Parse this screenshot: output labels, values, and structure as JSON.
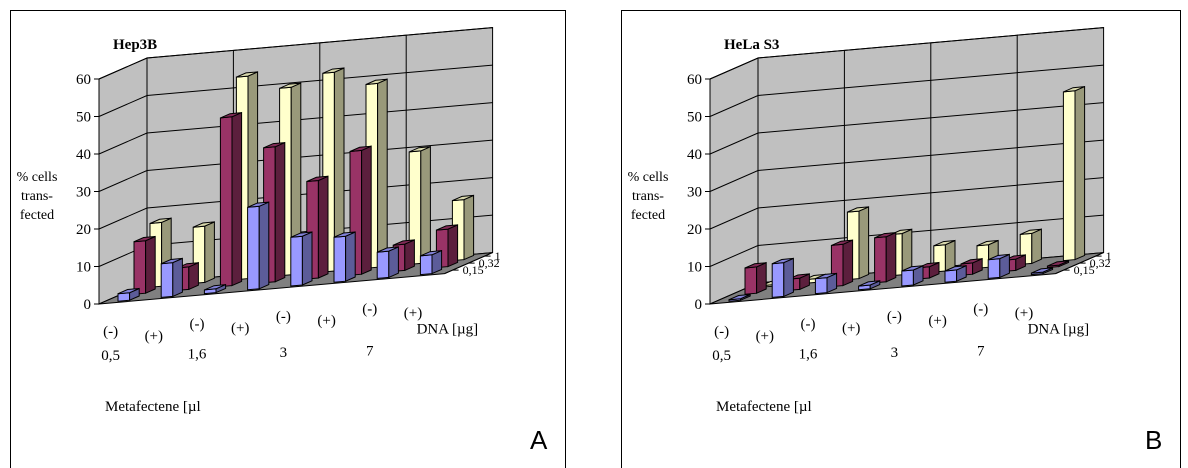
{
  "chart_data": [
    {
      "type": "bar",
      "panel_label": "A",
      "title": "Hep3B",
      "ylabel": [
        "% cells",
        "trans-",
        "fected"
      ],
      "xlabel": "Metafectene [µl",
      "zlabel": "DNA [µg]",
      "ylim": [
        0,
        60
      ],
      "yticks": [
        "0",
        "10",
        "20",
        "30",
        "40",
        "50",
        "60"
      ],
      "categories": [
        "(-)",
        "(+)",
        "(-)",
        "(+)",
        "(-)",
        "(+)",
        "(-)",
        "(+)"
      ],
      "group_labels": [
        "0,5",
        "1,6",
        "3",
        "7"
      ],
      "series": [
        {
          "name": "0,15",
          "values": [
            2,
            9,
            1,
            22,
            13,
            12,
            7,
            5
          ]
        },
        {
          "name": "0,32",
          "values": [
            14,
            6,
            45,
            36,
            26,
            33,
            7,
            10
          ]
        },
        {
          "name": "1",
          "values": [
            17,
            15,
            54,
            50,
            53,
            49,
            30,
            16
          ]
        }
      ],
      "colors": {
        "0,15": "#9999ff",
        "0,32": "#993366",
        "1": "#ffffcc"
      },
      "grid": true
    },
    {
      "type": "bar",
      "panel_label": "B",
      "title": "HeLa S3",
      "ylabel": [
        "% cells",
        "trans-",
        "fected"
      ],
      "xlabel": "Metafectene [µl",
      "zlabel": "DNA [µg]",
      "ylim": [
        0,
        60
      ],
      "yticks": [
        "0",
        "10",
        "20",
        "30",
        "40",
        "50",
        "60"
      ],
      "categories": [
        "(-)",
        "(+)",
        "(-)",
        "(+)",
        "(-)",
        "(+)",
        "(-)",
        "(+)"
      ],
      "group_labels": [
        "0,5",
        "1,6",
        "3",
        "7"
      ],
      "series": [
        {
          "name": "0,15",
          "values": [
            0,
            9,
            4,
            1,
            4,
            3,
            5,
            0
          ]
        },
        {
          "name": "0,32",
          "values": [
            7,
            3,
            11,
            12,
            3,
            3,
            3,
            0
          ]
        },
        {
          "name": "1",
          "values": [
            0,
            1,
            18,
            11,
            7,
            6,
            8,
            45
          ]
        }
      ],
      "colors": {
        "0,15": "#9999ff",
        "0,32": "#993366",
        "1": "#ffffcc"
      },
      "grid": true
    }
  ]
}
